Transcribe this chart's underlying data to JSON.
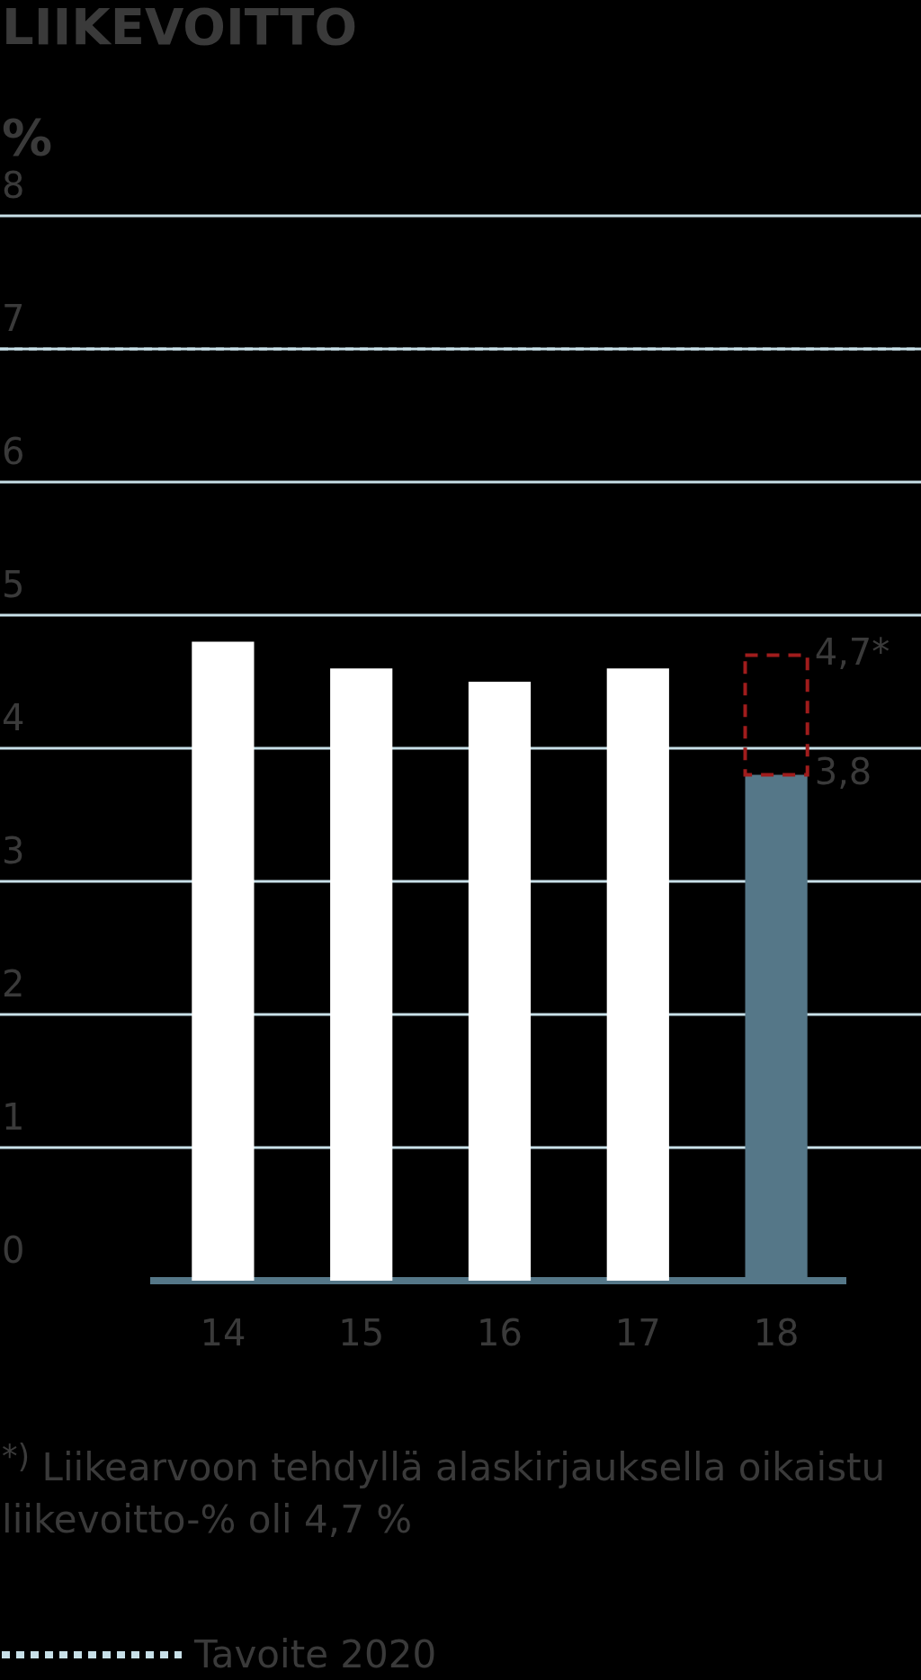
{
  "chart_data": {
    "type": "bar",
    "title": "LIIKEVOITTO",
    "ylabel": "%",
    "categories": [
      "14",
      "15",
      "16",
      "17",
      "18"
    ],
    "stacked": true,
    "series": [
      {
        "colors": [
          "#ffffff",
          "#ffffff",
          "#ffffff",
          "#ffffff",
          "#557788"
        ],
        "values": [
          4.8,
          4.6,
          4.5,
          4.6,
          3.8
        ]
      },
      {
        "color": "#a01c1c",
        "line_style": "dashed",
        "values": [
          null,
          null,
          null,
          null,
          0.9
        ]
      }
    ],
    "ylim": [
      0,
      8
    ],
    "yticks": [
      0,
      1,
      2,
      3,
      4,
      5,
      6,
      7,
      8
    ],
    "grid": "y",
    "ref_lines": [
      {
        "axis": "y",
        "value": 7,
        "label": "Tavoite 2020",
        "color": "#c8e0e8",
        "line_style": "dotted"
      }
    ],
    "annotations": [
      {
        "text": "4,7*",
        "x": "18",
        "y": 4.7
      },
      {
        "text": "3,8",
        "x": "18",
        "y": 3.8
      },
      "$^{*)}$ Liikearvoon tehdyllä alaskirjauksella oikaistu liikevoitto-% oli 4,7 %"
    ]
  }
}
